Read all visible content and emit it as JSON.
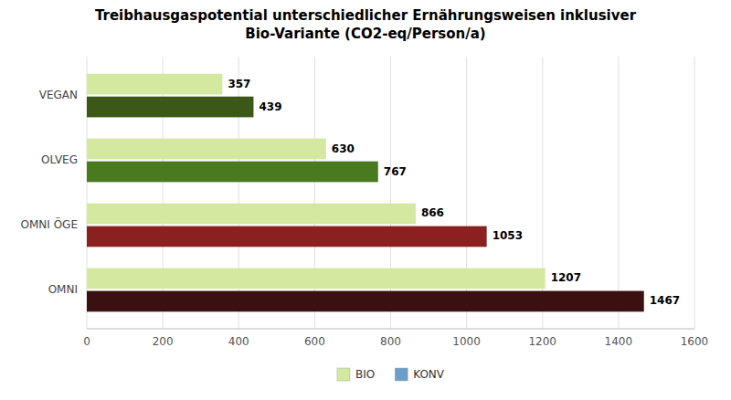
{
  "chart_data": {
    "type": "bar",
    "orientation": "horizontal",
    "title": "Treibhausgaspotential unterschiedlicher Ernährungsweisen inklusiver\nBio-Variante  (CO2-eq/Person/a)",
    "categories": [
      "OMNI",
      "OMNI ÖGE",
      "OLVEG",
      "VEGAN"
    ],
    "series": [
      {
        "name": "BIO",
        "color": "#d4e8a0",
        "values": [
          1207,
          866,
          630,
          357
        ]
      },
      {
        "name": "KONV",
        "color": "#6b9ec8",
        "colors": [
          "#3b1010",
          "#8b2020",
          "#4a7a20",
          "#3b5818"
        ],
        "values": [
          1467,
          1053,
          767,
          439
        ]
      }
    ],
    "xlim": [
      0,
      1600
    ],
    "xticks": [
      0,
      200,
      400,
      600,
      800,
      1000,
      1200,
      1400,
      1600
    ],
    "grid": true,
    "data_labels": true,
    "legend": "bottom"
  }
}
